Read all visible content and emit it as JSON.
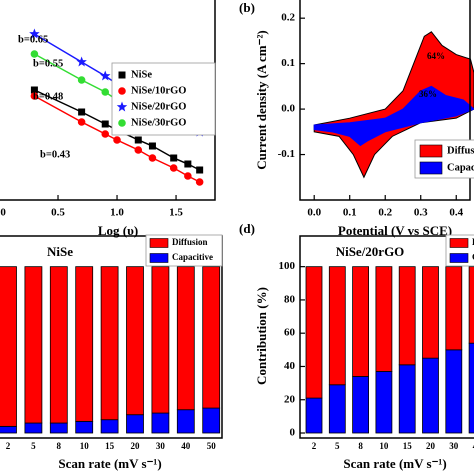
{
  "chart_data": [
    {
      "type": "line",
      "xlabel": "Log (υ)",
      "x": [
        0.3,
        0.7,
        0.9,
        1.0,
        1.18,
        1.3,
        1.48,
        1.6,
        1.7
      ],
      "xlim": [
        0,
        1.83
      ],
      "xticks": [
        {
          "value": 0,
          "label": "0.0"
        },
        0.5,
        {
          "value": 1.0,
          "label": "1.0"
        },
        1.5
      ],
      "ylim": [
        0,
        1
      ],
      "series": [
        {
          "name": "NiSe",
          "color": "#000000",
          "marker": "square",
          "values": [
            0.55,
            0.44,
            0.38,
            0.35,
            0.3,
            0.27,
            0.21,
            0.18,
            0.15
          ]
        },
        {
          "name": "NiSe/10rGO",
          "color": "#ff0000",
          "marker": "circle",
          "values": [
            0.52,
            0.39,
            0.33,
            0.3,
            0.25,
            0.21,
            0.16,
            0.12,
            0.09
          ]
        },
        {
          "name": "NiSe/20rGO",
          "color": "#1a1aff",
          "marker": "star",
          "values": [
            0.83,
            0.69,
            0.62,
            0.58,
            0.52,
            0.48,
            0.42,
            0.37,
            0.34
          ]
        },
        {
          "name": "NiSe/30rGO",
          "color": "#33dd33",
          "marker": "circle",
          "values": [
            0.73,
            0.6,
            0.54,
            0.5,
            0.45,
            0.41,
            0.35,
            null,
            null
          ]
        }
      ],
      "annotations": [
        {
          "text": "b=0.65",
          "color": "#1a1aff"
        },
        {
          "text": "b=0.55",
          "color": "#33dd33"
        },
        {
          "text": "b=0.48",
          "color": "#000000"
        },
        {
          "text": "b=0.43",
          "color": "#ff0000"
        }
      ]
    },
    {
      "type": "area",
      "panel_label": "(b)",
      "xlabel": "Potential (V vs SCE)",
      "ylabel": "Current density (A cm⁻²)",
      "xlim": [
        -0.04,
        0.45
      ],
      "xticks": [
        {
          "value": 0,
          "label": "0.0"
        },
        0.1,
        0.2,
        0.3,
        0.4
      ],
      "ylim": [
        -0.2,
        0.24
      ],
      "yticks": [
        {
          "value": 0.2,
          "label": "0.2"
        },
        0.1,
        {
          "value": 0,
          "label": "0.0"
        },
        -0.1
      ],
      "series": [
        {
          "name": "Diffusion",
          "color": "#ff0000",
          "x": [
            0.0,
            0.1,
            0.2,
            0.25,
            0.28,
            0.31,
            0.33,
            0.36,
            0.4,
            0.44,
            0.45,
            0.45,
            0.4,
            0.3,
            0.22,
            0.17,
            0.14,
            0.11,
            0.07,
            0.0
          ],
          "values": [
            -0.035,
            -0.02,
            0.0,
            0.04,
            0.1,
            0.16,
            0.17,
            0.14,
            0.12,
            0.11,
            0.08,
            0.0,
            -0.02,
            -0.03,
            -0.06,
            -0.1,
            -0.15,
            -0.1,
            -0.06,
            -0.05
          ]
        },
        {
          "name": "Capacitive",
          "color": "#0000ff",
          "x": [
            0.0,
            0.1,
            0.2,
            0.25,
            0.3,
            0.33,
            0.37,
            0.42,
            0.45,
            0.4,
            0.3,
            0.2,
            0.15,
            0.13,
            0.1,
            0.05,
            0.0
          ],
          "values": [
            -0.035,
            -0.03,
            -0.02,
            0.0,
            0.04,
            0.05,
            0.03,
            0.02,
            0.0,
            -0.015,
            -0.03,
            -0.05,
            -0.07,
            -0.08,
            -0.06,
            -0.05,
            -0.045
          ]
        }
      ],
      "annotations": [
        "64%",
        "36%"
      ]
    },
    {
      "type": "bar",
      "title": "NiSe",
      "xlabel": "Scan rate (mV s⁻¹)",
      "categories": [
        "2",
        "5",
        "8",
        "10",
        "15",
        "20",
        "30",
        "40",
        "50"
      ],
      "ylim": [
        -3,
        104
      ],
      "series": [
        {
          "name": "Diffusion",
          "color": "#ff0000",
          "values": [
            96,
            94,
            94,
            93,
            92,
            89,
            88,
            86,
            85
          ]
        },
        {
          "name": "Capacitive",
          "color": "#0000ff",
          "values": [
            4,
            6,
            6,
            7,
            8,
            11,
            12,
            14,
            15
          ]
        }
      ]
    },
    {
      "type": "bar",
      "panel_label": "(d)",
      "title": "NiSe/20rGO",
      "xlabel": "Scan rate (mV s⁻¹)",
      "ylabel": "Contribution (%)",
      "categories": [
        "2",
        "5",
        "8",
        "10",
        "15",
        "20",
        "30",
        "40",
        "50"
      ],
      "ylim": [
        -3,
        104
      ],
      "yticks": [
        0,
        20,
        40,
        60,
        80,
        100
      ],
      "series": [
        {
          "name": "Diffusion",
          "color": "#ff0000",
          "values": [
            79,
            71,
            66,
            63,
            59,
            55,
            50,
            46,
            42
          ]
        },
        {
          "name": "Capacitive",
          "color": "#0000ff",
          "values": [
            21,
            29,
            34,
            37,
            41,
            45,
            50,
            54,
            58
          ]
        }
      ]
    }
  ]
}
